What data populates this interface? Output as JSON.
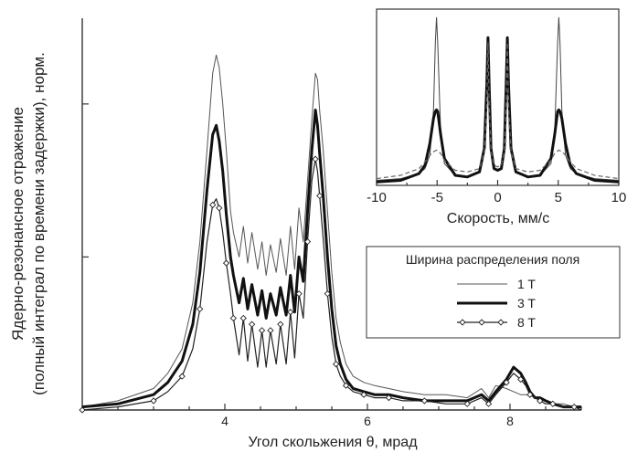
{
  "colors": {
    "axis": "#333333",
    "text": "#222222",
    "series_1T": "#555555",
    "series_3T": "#111111",
    "series_8T": "#222222",
    "inset_thin": "#444444",
    "inset_thick": "#111111",
    "inset_dashed": "#666666",
    "marker_fill": "#ffffff"
  },
  "chart_data": [
    {
      "type": "line",
      "title": "",
      "xlabel": "Угол скольжения θ, мрад",
      "ylabel_lines": [
        "Ядерно-резонансное отражение",
        "(полный интеграл по времени задержки),  норм."
      ],
      "xlim": [
        2.0,
        9.0
      ],
      "ylim": [
        0,
        1.28
      ],
      "x_ticks": [
        4,
        6,
        8
      ],
      "y_tick_values": [
        0.5,
        1.0
      ],
      "grid": false,
      "legend": {
        "title": "Ширина распределения поля",
        "position": "right",
        "entries": [
          "1 T",
          "3 T",
          "8 T"
        ]
      },
      "series": [
        {
          "name": "1 T",
          "style": "thin",
          "x": [
            2.0,
            2.5,
            3.0,
            3.2,
            3.4,
            3.55,
            3.65,
            3.75,
            3.83,
            3.88,
            3.92,
            3.97,
            4.02,
            4.08,
            4.12,
            4.2,
            4.26,
            4.32,
            4.38,
            4.46,
            4.52,
            4.58,
            4.64,
            4.72,
            4.78,
            4.86,
            4.92,
            4.98,
            5.04,
            5.1,
            5.16,
            5.22,
            5.27,
            5.3,
            5.33,
            5.38,
            5.44,
            5.5,
            5.56,
            5.62,
            5.7,
            5.8,
            5.95,
            6.1,
            6.3,
            6.5,
            6.8,
            7.1,
            7.4,
            7.6,
            7.7,
            7.8,
            7.95,
            8.05,
            8.15,
            8.22,
            8.28,
            8.35,
            8.42,
            8.5,
            8.6,
            8.75,
            8.9,
            9.0
          ],
          "y": [
            0.01,
            0.03,
            0.07,
            0.12,
            0.2,
            0.35,
            0.55,
            0.85,
            1.1,
            1.16,
            1.12,
            1.0,
            0.85,
            0.65,
            0.58,
            0.5,
            0.6,
            0.48,
            0.58,
            0.46,
            0.55,
            0.44,
            0.54,
            0.45,
            0.56,
            0.44,
            0.6,
            0.46,
            0.66,
            0.55,
            0.75,
            0.95,
            1.1,
            1.08,
            0.98,
            0.85,
            0.65,
            0.45,
            0.3,
            0.22,
            0.15,
            0.11,
            0.09,
            0.08,
            0.07,
            0.06,
            0.05,
            0.05,
            0.04,
            0.07,
            0.04,
            0.08,
            0.07,
            0.06,
            0.05,
            0.05,
            0.05,
            0.04,
            0.04,
            0.03,
            0.02,
            0.02,
            0.01,
            0.01
          ]
        },
        {
          "name": "3 T",
          "style": "thick",
          "x": [
            2.0,
            2.5,
            3.0,
            3.2,
            3.4,
            3.55,
            3.65,
            3.75,
            3.83,
            3.88,
            3.92,
            3.97,
            4.02,
            4.08,
            4.12,
            4.2,
            4.26,
            4.32,
            4.38,
            4.46,
            4.52,
            4.58,
            4.64,
            4.72,
            4.78,
            4.86,
            4.92,
            4.98,
            5.04,
            5.1,
            5.16,
            5.22,
            5.27,
            5.3,
            5.33,
            5.38,
            5.44,
            5.5,
            5.56,
            5.62,
            5.7,
            5.8,
            5.95,
            6.1,
            6.3,
            6.5,
            6.8,
            7.1,
            7.4,
            7.6,
            7.7,
            7.8,
            7.95,
            8.05,
            8.15,
            8.22,
            8.28,
            8.35,
            8.42,
            8.5,
            8.6,
            8.75,
            8.9,
            9.0
          ],
          "y": [
            0.01,
            0.02,
            0.05,
            0.09,
            0.16,
            0.28,
            0.45,
            0.72,
            0.9,
            0.93,
            0.88,
            0.78,
            0.64,
            0.5,
            0.44,
            0.35,
            0.43,
            0.33,
            0.41,
            0.31,
            0.39,
            0.3,
            0.38,
            0.31,
            0.4,
            0.31,
            0.44,
            0.32,
            0.5,
            0.42,
            0.65,
            0.85,
            0.98,
            0.93,
            0.84,
            0.7,
            0.5,
            0.33,
            0.21,
            0.15,
            0.1,
            0.07,
            0.06,
            0.05,
            0.05,
            0.04,
            0.03,
            0.03,
            0.03,
            0.05,
            0.03,
            0.06,
            0.1,
            0.14,
            0.12,
            0.09,
            0.06,
            0.04,
            0.04,
            0.03,
            0.02,
            0.01,
            0.01,
            0.01
          ]
        },
        {
          "name": "8 T",
          "style": "diamond",
          "x": [
            2.0,
            2.5,
            3.0,
            3.2,
            3.4,
            3.55,
            3.65,
            3.75,
            3.83,
            3.88,
            3.92,
            3.97,
            4.02,
            4.08,
            4.12,
            4.2,
            4.26,
            4.32,
            4.38,
            4.46,
            4.52,
            4.58,
            4.64,
            4.72,
            4.78,
            4.86,
            4.92,
            4.98,
            5.04,
            5.1,
            5.16,
            5.22,
            5.27,
            5.3,
            5.33,
            5.38,
            5.44,
            5.5,
            5.56,
            5.62,
            5.7,
            5.8,
            5.95,
            6.1,
            6.3,
            6.5,
            6.8,
            7.1,
            7.4,
            7.6,
            7.7,
            7.8,
            7.95,
            8.05,
            8.15,
            8.22,
            8.28,
            8.35,
            8.42,
            8.5,
            8.6,
            8.75,
            8.9,
            9.0
          ],
          "y": [
            0.0,
            0.01,
            0.03,
            0.06,
            0.11,
            0.2,
            0.33,
            0.55,
            0.67,
            0.69,
            0.66,
            0.58,
            0.48,
            0.38,
            0.3,
            0.18,
            0.3,
            0.16,
            0.28,
            0.14,
            0.26,
            0.14,
            0.26,
            0.15,
            0.28,
            0.15,
            0.32,
            0.17,
            0.38,
            0.3,
            0.55,
            0.75,
            0.82,
            0.78,
            0.7,
            0.56,
            0.38,
            0.24,
            0.15,
            0.11,
            0.08,
            0.06,
            0.05,
            0.04,
            0.04,
            0.03,
            0.03,
            0.02,
            0.02,
            0.04,
            0.02,
            0.05,
            0.09,
            0.12,
            0.1,
            0.08,
            0.05,
            0.04,
            0.03,
            0.02,
            0.02,
            0.01,
            0.01,
            0.0
          ]
        }
      ]
    },
    {
      "type": "line",
      "title": "",
      "xlabel": "Скорость, мм/с",
      "ylabel": "",
      "xlim": [
        -10,
        10
      ],
      "ylim": [
        0,
        1.05
      ],
      "x_ticks": [
        -10,
        -5,
        0,
        5,
        10
      ],
      "grid": false,
      "series": [
        {
          "style": "thin",
          "x": [
            -10,
            -8,
            -6.5,
            -6,
            -5.6,
            -5.3,
            -5.15,
            -5.05,
            -4.95,
            -4.7,
            -4.4,
            -3.5,
            -2.5,
            -1.5,
            -1.1,
            -0.9,
            -0.8,
            -0.7,
            -0.55,
            -0.3,
            0,
            0.3,
            0.55,
            0.7,
            0.8,
            0.9,
            1.1,
            1.5,
            2.5,
            3.5,
            4.4,
            4.7,
            4.95,
            5.05,
            5.15,
            5.3,
            5.6,
            6,
            6.5,
            8,
            10
          ],
          "y": [
            0.03,
            0.04,
            0.07,
            0.1,
            0.18,
            0.45,
            0.85,
            1.0,
            0.85,
            0.3,
            0.13,
            0.06,
            0.05,
            0.08,
            0.2,
            0.55,
            0.88,
            0.55,
            0.2,
            0.1,
            0.09,
            0.1,
            0.2,
            0.55,
            0.88,
            0.55,
            0.2,
            0.08,
            0.05,
            0.06,
            0.13,
            0.3,
            0.85,
            1.0,
            0.85,
            0.45,
            0.18,
            0.1,
            0.07,
            0.04,
            0.03
          ]
        },
        {
          "style": "thick",
          "x": [
            -10,
            -8,
            -6.5,
            -6,
            -5.6,
            -5.3,
            -5.15,
            -5.05,
            -4.95,
            -4.7,
            -4.4,
            -3.5,
            -2.5,
            -1.5,
            -1.1,
            -0.9,
            -0.8,
            -0.7,
            -0.55,
            -0.3,
            0,
            0.3,
            0.55,
            0.7,
            0.8,
            0.9,
            1.1,
            1.5,
            2.5,
            3.5,
            4.4,
            4.7,
            4.95,
            5.05,
            5.15,
            5.3,
            5.6,
            6,
            6.5,
            8,
            10
          ],
          "y": [
            0.02,
            0.03,
            0.07,
            0.12,
            0.25,
            0.4,
            0.44,
            0.45,
            0.44,
            0.3,
            0.16,
            0.06,
            0.05,
            0.08,
            0.22,
            0.6,
            0.88,
            0.6,
            0.22,
            0.1,
            0.09,
            0.1,
            0.22,
            0.6,
            0.88,
            0.6,
            0.22,
            0.08,
            0.05,
            0.06,
            0.16,
            0.3,
            0.44,
            0.45,
            0.44,
            0.4,
            0.25,
            0.12,
            0.07,
            0.03,
            0.02
          ]
        },
        {
          "style": "dashed",
          "x": [
            -10,
            -8,
            -6.5,
            -6,
            -5.6,
            -5.3,
            -5.05,
            -4.7,
            -4.4,
            -3.5,
            -2.5,
            -1.5,
            -1.1,
            -0.9,
            -0.8,
            -0.7,
            -0.55,
            -0.3,
            0,
            0.3,
            0.55,
            0.7,
            0.8,
            0.9,
            1.1,
            1.5,
            2.5,
            3.5,
            4.4,
            4.7,
            5.05,
            5.3,
            5.6,
            6,
            6.5,
            8,
            10
          ],
          "y": [
            0.04,
            0.06,
            0.1,
            0.14,
            0.18,
            0.2,
            0.21,
            0.19,
            0.15,
            0.09,
            0.08,
            0.1,
            0.2,
            0.48,
            0.85,
            0.48,
            0.2,
            0.12,
            0.11,
            0.12,
            0.2,
            0.48,
            0.85,
            0.48,
            0.2,
            0.1,
            0.08,
            0.09,
            0.15,
            0.19,
            0.21,
            0.2,
            0.18,
            0.14,
            0.1,
            0.06,
            0.04
          ]
        }
      ]
    }
  ]
}
